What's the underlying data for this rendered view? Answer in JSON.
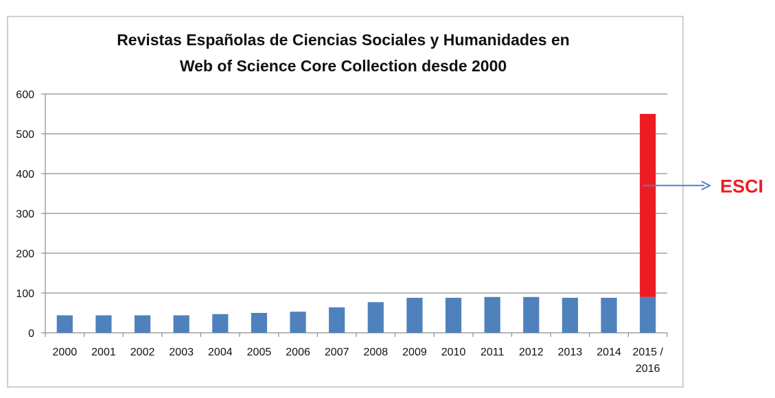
{
  "chart_data": {
    "type": "bar",
    "stacked": true,
    "title": [
      "Revistas Españolas de Ciencias Sociales y Humanidades en",
      "Web of Science Core Collection desde 2000"
    ],
    "xlabel": "",
    "ylabel": "",
    "ylim": [
      0,
      600
    ],
    "yticks": [
      0,
      100,
      200,
      300,
      400,
      500,
      600
    ],
    "grid": true,
    "categories": [
      "2000",
      "2001",
      "2002",
      "2003",
      "2004",
      "2005",
      "2006",
      "2007",
      "2008",
      "2009",
      "2010",
      "2011",
      "2012",
      "2013",
      "2014",
      "2015 / 2016"
    ],
    "category_lines": [
      [
        "2000"
      ],
      [
        "2001"
      ],
      [
        "2002"
      ],
      [
        "2003"
      ],
      [
        "2004"
      ],
      [
        "2005"
      ],
      [
        "2006"
      ],
      [
        "2007"
      ],
      [
        "2008"
      ],
      [
        "2009"
      ],
      [
        "2010"
      ],
      [
        "2011"
      ],
      [
        "2012"
      ],
      [
        "2013"
      ],
      [
        "2014"
      ],
      [
        "2015 /",
        "2016"
      ]
    ],
    "series": [
      {
        "values": [
          44,
          44,
          44,
          44,
          47,
          50,
          53,
          64,
          77,
          88,
          88,
          90,
          90,
          88,
          88,
          90
        ],
        "color": "#4f81bd"
      },
      {
        "values": [
          0,
          0,
          0,
          0,
          0,
          0,
          0,
          0,
          0,
          0,
          0,
          0,
          0,
          0,
          0,
          460
        ],
        "color": "#ed1c24"
      }
    ],
    "annotation": {
      "text": "ESCI",
      "color": "#ed1c24",
      "arrow_color": "#4f81bd",
      "points_to_category": "2015 / 2016",
      "at_value": 370
    }
  }
}
